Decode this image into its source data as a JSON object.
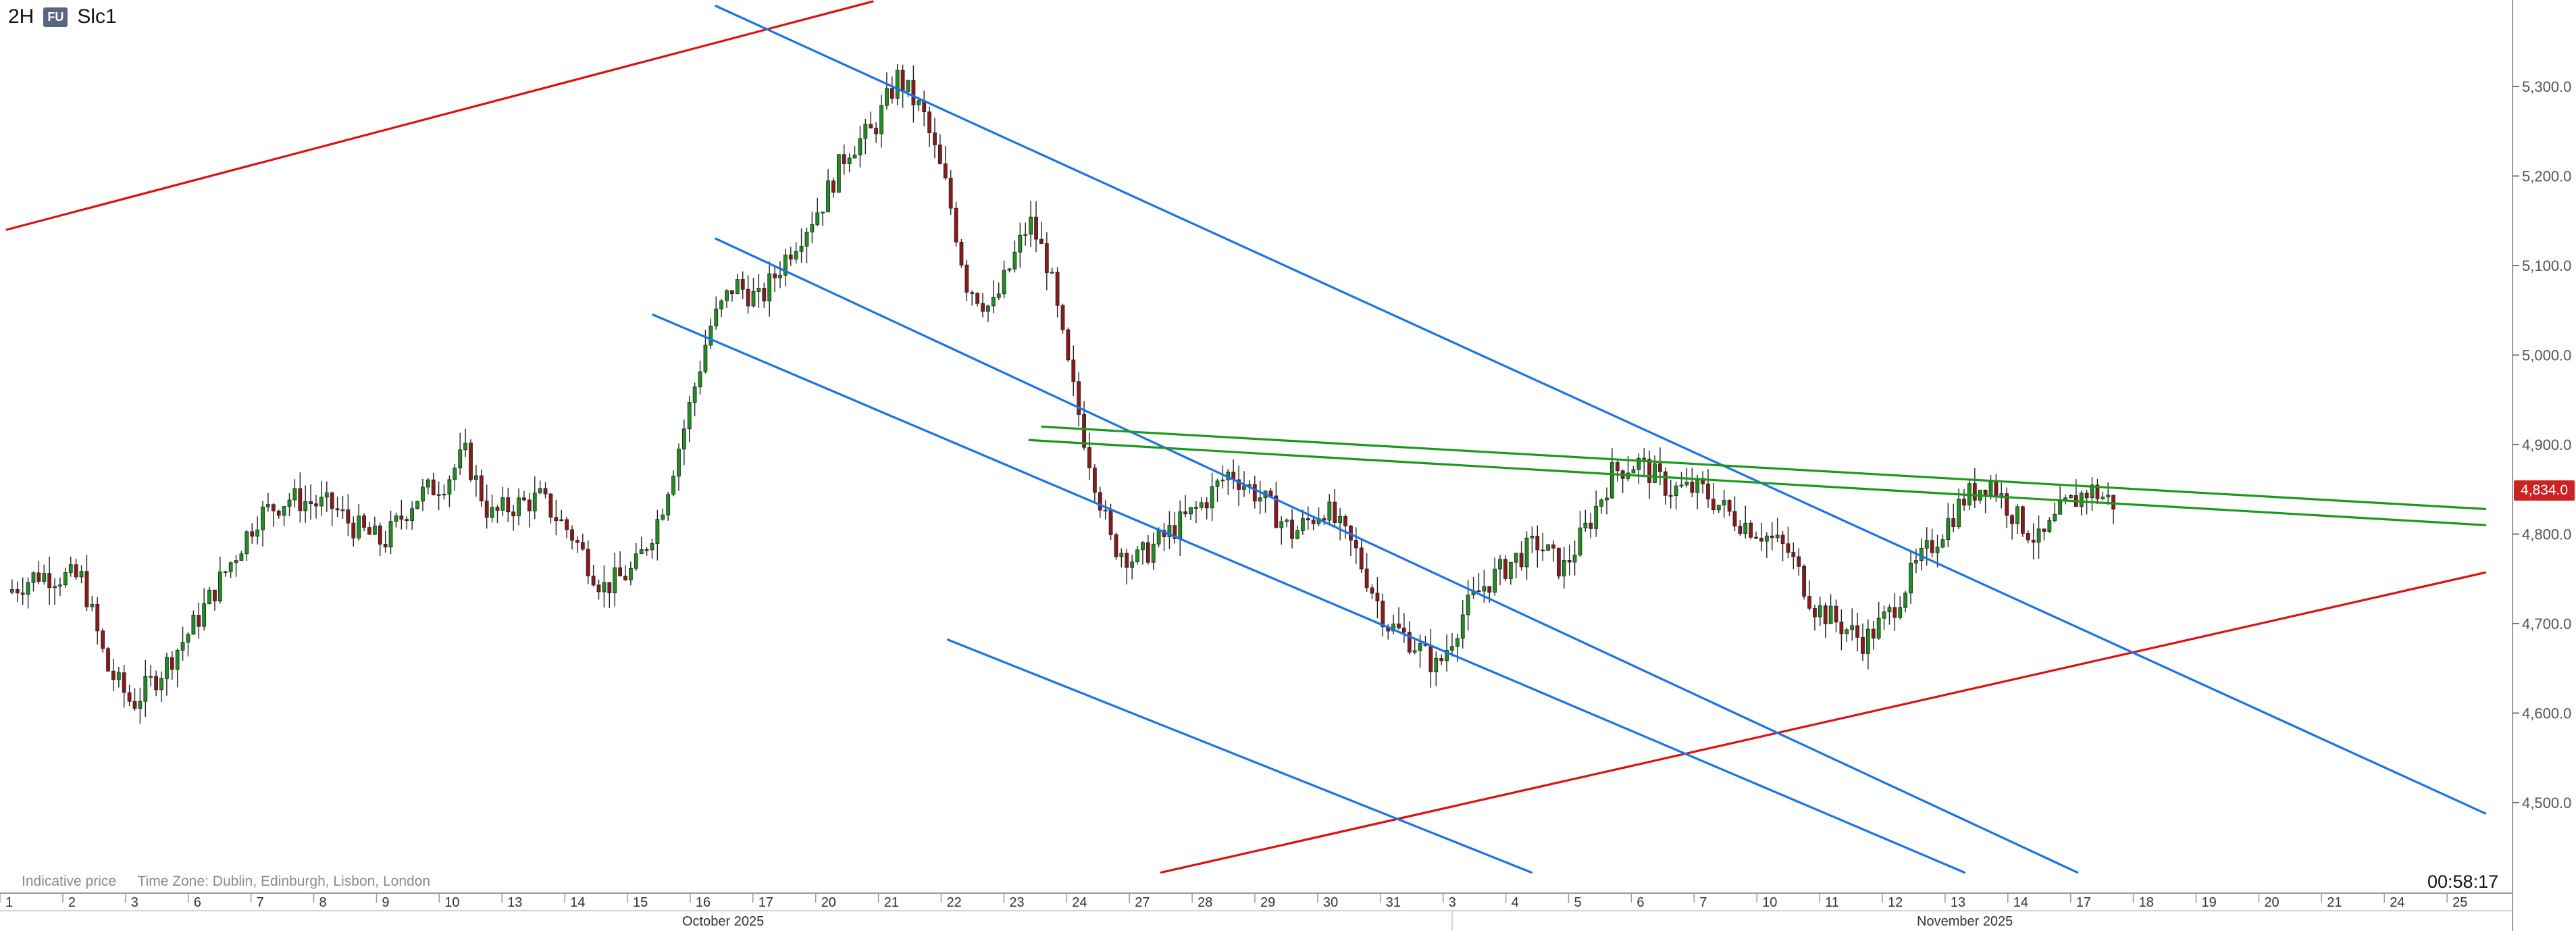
{
  "header": {
    "interval": "2H",
    "symbol_badge": "FU",
    "symbol": "Slc1"
  },
  "footer": {
    "note": "Indicative price",
    "timezone": "Time Zone: Dublin, Edinburgh, Lisbon, London"
  },
  "countdown": "00:58:17",
  "last_price": {
    "label": "4,834.0",
    "value": 4834,
    "color": "#cc2222"
  },
  "colors": {
    "up": "#1f8f1f",
    "down": "#8b1a1a",
    "red_line": "#dd1111",
    "blue_line": "#1a73e8",
    "green_line": "#1a9a1a",
    "grid": "#cfcfcf"
  },
  "chart_data": {
    "type": "candlestick",
    "y_ticks": [
      "5,300.0",
      "5,200.0",
      "5,100.0",
      "5,000.0",
      "4,900.0",
      "4,800.0",
      "4,700.0",
      "4,600.0",
      "4,500.0"
    ],
    "y_tick_values": [
      5300,
      5200,
      5100,
      5000,
      4900,
      4800,
      4700,
      4600,
      4500
    ],
    "ylim": [
      4422,
      5395
    ],
    "x_ticks": [
      "1",
      "2",
      "3",
      "6",
      "7",
      "8",
      "9",
      "10",
      "13",
      "14",
      "15",
      "16",
      "17",
      "20",
      "21",
      "22",
      "23",
      "24",
      "27",
      "28",
      "29",
      "30",
      "31",
      "3",
      "4",
      "5",
      "6",
      "7",
      "10",
      "11",
      "12",
      "13",
      "14",
      "17",
      "18",
      "19",
      "20",
      "21",
      "24",
      "25"
    ],
    "month_labels": [
      "October 2025",
      "November 2025"
    ],
    "data_start_index": 0,
    "data_end_index": 26.5,
    "price_path_anchors": [
      [
        0,
        4735
      ],
      [
        0.5,
        4755
      ],
      [
        1.2,
        4750
      ],
      [
        1.6,
        4650
      ],
      [
        2,
        4610
      ],
      [
        2.5,
        4650
      ],
      [
        3,
        4700
      ],
      [
        3.5,
        4760
      ],
      [
        4,
        4820
      ],
      [
        4.5,
        4840
      ],
      [
        5.2,
        4830
      ],
      [
        5.5,
        4810
      ],
      [
        6,
        4790
      ],
      [
        6.5,
        4840
      ],
      [
        7,
        4860
      ],
      [
        7.3,
        4890
      ],
      [
        7.7,
        4820
      ],
      [
        8,
        4830
      ],
      [
        8.5,
        4840
      ],
      [
        9,
        4800
      ],
      [
        9.5,
        4740
      ],
      [
        10,
        4760
      ],
      [
        10.4,
        4820
      ],
      [
        10.8,
        4920
      ],
      [
        11.2,
        5030
      ],
      [
        11.6,
        5080
      ],
      [
        12,
        5060
      ],
      [
        12.5,
        5120
      ],
      [
        13,
        5170
      ],
      [
        13.4,
        5230
      ],
      [
        13.8,
        5250
      ],
      [
        14.2,
        5310
      ],
      [
        14.6,
        5270
      ],
      [
        15,
        5180
      ],
      [
        15.3,
        5080
      ],
      [
        15.7,
        5050
      ],
      [
        16,
        5100
      ],
      [
        16.3,
        5150
      ],
      [
        16.6,
        5100
      ],
      [
        16.9,
        4990
      ],
      [
        17.2,
        4900
      ],
      [
        17.6,
        4790
      ],
      [
        18,
        4770
      ],
      [
        18.5,
        4800
      ],
      [
        19,
        4830
      ],
      [
        19.5,
        4870
      ],
      [
        20,
        4840
      ],
      [
        20.5,
        4800
      ],
      [
        21,
        4830
      ],
      [
        21.5,
        4780
      ],
      [
        22,
        4700
      ],
      [
        22.4,
        4680
      ],
      [
        22.8,
        4650
      ],
      [
        23.2,
        4710
      ],
      [
        23.5,
        4740
      ],
      [
        24,
        4770
      ],
      [
        24.4,
        4790
      ],
      [
        24.8,
        4760
      ],
      [
        25.2,
        4810
      ],
      [
        25.6,
        4870
      ],
      [
        26,
        4880
      ],
      [
        26.5,
        4850
      ],
      [
        27,
        4850
      ],
      [
        27.5,
        4820
      ],
      [
        28,
        4800
      ],
      [
        28.4,
        4780
      ],
      [
        28.8,
        4720
      ],
      [
        29.2,
        4700
      ],
      [
        29.6,
        4680
      ],
      [
        30,
        4710
      ],
      [
        30.4,
        4760
      ],
      [
        30.8,
        4800
      ],
      [
        31.2,
        4840
      ],
      [
        31.6,
        4860
      ],
      [
        32,
        4820
      ],
      [
        32.4,
        4790
      ],
      [
        32.8,
        4830
      ],
      [
        33.2,
        4850
      ],
      [
        33.6,
        4834
      ]
    ],
    "trendlines": [
      {
        "color": "red",
        "from": [
          0,
          5140
        ],
        "to": [
          13.8,
          5395
        ]
      },
      {
        "color": "red",
        "from": [
          18.4,
          4422
        ],
        "to": [
          39.5,
          4757
        ]
      },
      {
        "color": "blue",
        "from": [
          11.3,
          5390
        ],
        "to": [
          39.5,
          4488
        ]
      },
      {
        "color": "blue",
        "from": [
          11.3,
          5130
        ],
        "to": [
          33,
          4422
        ]
      },
      {
        "color": "blue",
        "from": [
          10.3,
          5045
        ],
        "to": [
          31.2,
          4422
        ]
      },
      {
        "color": "blue",
        "from": [
          15,
          4682
        ],
        "to": [
          24.3,
          4422
        ]
      },
      {
        "color": "green",
        "from": [
          16.5,
          4920
        ],
        "to": [
          39.5,
          4828
        ]
      },
      {
        "color": "green",
        "from": [
          16.3,
          4905
        ],
        "to": [
          39.5,
          4810
        ]
      }
    ],
    "grid": true
  }
}
